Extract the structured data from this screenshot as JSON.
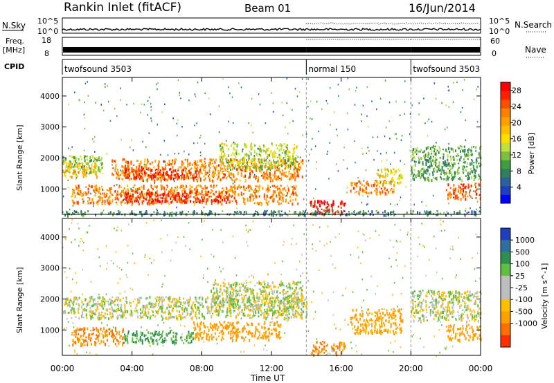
{
  "header": {
    "station": "Rankin Inlet (fitACF)",
    "beam": "Beam 01",
    "date": "16/Jun/2014"
  },
  "nsky_panel": {
    "left_label": "N.Sky",
    "right_label": "N.Search",
    "tick_top": "10^5",
    "tick_bottom": "10^0",
    "right_tick_top": "10^5",
    "right_tick_bottom": "10^0"
  },
  "freq_panel": {
    "left_label_1": "Freq.",
    "left_label_2": "[MHz]",
    "tick_top": "18",
    "tick_bottom": "8",
    "right_label": "Nave",
    "right_tick_top": "60",
    "right_tick_bottom": "0"
  },
  "cpid_panel": {
    "label": "CPID",
    "segments": [
      {
        "name": "twofsound 3503",
        "start_hour": 0,
        "end_hour": 14
      },
      {
        "name": "normal 150",
        "start_hour": 14,
        "end_hour": 20
      },
      {
        "name": "twofsound 3503",
        "start_hour": 20,
        "end_hour": 24
      }
    ]
  },
  "time_axis": {
    "label": "Time UT",
    "ticks": [
      "00:00",
      "04:00",
      "08:00",
      "12:00",
      "16:00",
      "20:00",
      "00:00"
    ]
  },
  "chart_data": [
    {
      "type": "heatmap",
      "title": "",
      "xlabel": "Time UT",
      "ylabel": "Slant Range [km]",
      "xlim": [
        0,
        24
      ],
      "ylim": [
        180,
        4600
      ],
      "yticks": [
        "1000",
        "2000",
        "3000",
        "4000"
      ],
      "colorbar": {
        "label": "Power [dB]",
        "ticks": [
          "4",
          "8",
          "12",
          "16",
          "20",
          "24",
          "28"
        ],
        "range": [
          0,
          30
        ],
        "colors": [
          "#0000ff",
          "#1e3fbf",
          "#2f5f9f",
          "#2f7f5f",
          "#3f9f3f",
          "#7fbf3f",
          "#bfdf3f",
          "#ffdf00",
          "#ffbf00",
          "#ff9f00",
          "#ff7f00",
          "#ff5000",
          "#ff2000",
          "#ff0000"
        ]
      },
      "data_regions": [
        {
          "t0": 0.0,
          "t1": 2.3,
          "r0": 1500,
          "r1": 2100,
          "level": 12
        },
        {
          "t0": 0.0,
          "t1": 2.0,
          "r0": 1400,
          "r1": 1900,
          "level": 18
        },
        {
          "t0": 2.8,
          "t1": 13.8,
          "r0": 1300,
          "r1": 2000,
          "level": 22
        },
        {
          "t0": 3.5,
          "t1": 8.0,
          "r0": 1350,
          "r1": 1700,
          "level": 27
        },
        {
          "t0": 9.0,
          "t1": 13.5,
          "r0": 1650,
          "r1": 2500,
          "level": 14
        },
        {
          "t0": 0.5,
          "t1": 13.5,
          "r0": 550,
          "r1": 1150,
          "level": 22
        },
        {
          "t0": 3.5,
          "t1": 9.5,
          "r0": 600,
          "r1": 950,
          "level": 28
        },
        {
          "t0": 14.2,
          "t1": 16.2,
          "r0": 220,
          "r1": 650,
          "level": 28
        },
        {
          "t0": 16.5,
          "t1": 19.0,
          "r0": 850,
          "r1": 1300,
          "level": 22
        },
        {
          "t0": 18.0,
          "t1": 19.5,
          "r0": 1200,
          "r1": 1700,
          "level": 16
        },
        {
          "t0": 20.0,
          "t1": 24.0,
          "r0": 1300,
          "r1": 2400,
          "level": 10
        },
        {
          "t0": 22.0,
          "t1": 24.0,
          "r0": 700,
          "r1": 1200,
          "level": 24
        },
        {
          "t0": 0.0,
          "t1": 24.0,
          "r0": 180,
          "r1": 320,
          "level": 8
        }
      ]
    },
    {
      "type": "heatmap",
      "title": "",
      "xlabel": "Time UT",
      "ylabel": "Slant Range [km]",
      "xlim": [
        0,
        24
      ],
      "ylim": [
        180,
        4600
      ],
      "yticks": [
        "1000",
        "2000",
        "3000",
        "4000"
      ],
      "colorbar": {
        "label": "Velocity [m s^-1]",
        "ticks": [
          "1000",
          "500",
          "100",
          "25",
          "-25",
          "-100",
          "-500",
          "-1000"
        ],
        "colors": [
          "#1f3fbf",
          "#2f6f9f",
          "#2f8f4f",
          "#5fbf3f",
          "#bdbdbd",
          "#bdbdbd",
          "#ffbf00",
          "#ff9f00",
          "#ff6f00",
          "#ff2f00"
        ]
      },
      "data_regions": [
        {
          "t0": 0.0,
          "t1": 14.0,
          "r0": 1400,
          "r1": 2100,
          "velocity": 0
        },
        {
          "t0": 8.5,
          "t1": 13.8,
          "r0": 1600,
          "r1": 2600,
          "velocity": 0
        },
        {
          "t0": 0.5,
          "t1": 3.5,
          "r0": 550,
          "r1": 1100,
          "velocity": -300
        },
        {
          "t0": 3.5,
          "t1": 7.5,
          "r0": 600,
          "r1": 1000,
          "velocity": 120
        },
        {
          "t0": 7.5,
          "t1": 12.5,
          "r0": 700,
          "r1": 1300,
          "velocity": -200
        },
        {
          "t0": 14.2,
          "t1": 16.2,
          "r0": 220,
          "r1": 650,
          "velocity": -300
        },
        {
          "t0": 16.5,
          "t1": 19.5,
          "r0": 900,
          "r1": 1700,
          "velocity": -150
        },
        {
          "t0": 20.0,
          "t1": 24.0,
          "r0": 1300,
          "r1": 2300,
          "velocity": 0
        },
        {
          "t0": 22.0,
          "t1": 24.0,
          "r0": 700,
          "r1": 1200,
          "velocity": -200
        }
      ]
    }
  ]
}
